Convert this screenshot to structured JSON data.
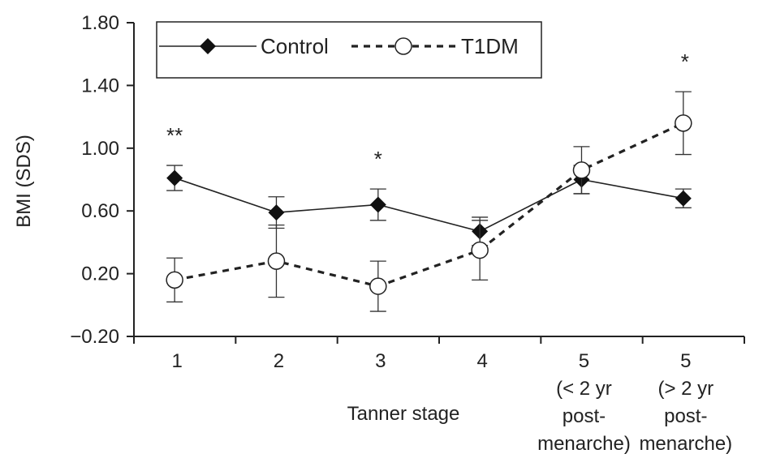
{
  "chart_data": {
    "type": "line",
    "title": "",
    "xlabel": "Tanner stage",
    "ylabel": "BMI (SDS)",
    "ylim": [
      -0.2,
      1.8
    ],
    "yticks": [
      "-0.20",
      "0.20",
      "0.60",
      "1.00",
      "1.40",
      "1.80"
    ],
    "categories": [
      [
        "1"
      ],
      [
        "2"
      ],
      [
        "3"
      ],
      [
        "4"
      ],
      [
        "5",
        "(< 2 yr",
        "post-",
        "menarche)"
      ],
      [
        "5",
        "(> 2 yr",
        "post-",
        "menarche)"
      ]
    ],
    "series": [
      {
        "name": "Control",
        "marker": "filled-diamond",
        "line": "solid",
        "values": [
          0.81,
          0.59,
          0.64,
          0.47,
          0.8,
          0.68
        ],
        "error": [
          0.08,
          0.1,
          0.1,
          0.09,
          0.09,
          0.06
        ]
      },
      {
        "name": "T1DM",
        "marker": "open-circle",
        "line": "dashed",
        "values": [
          0.16,
          0.28,
          0.12,
          0.35,
          0.86,
          1.16
        ],
        "error": [
          0.14,
          0.23,
          0.16,
          0.19,
          0.15,
          0.2
        ]
      }
    ],
    "significance": [
      "**",
      "",
      "*",
      "",
      "",
      "*"
    ],
    "legend": "top-left",
    "grid": false
  }
}
